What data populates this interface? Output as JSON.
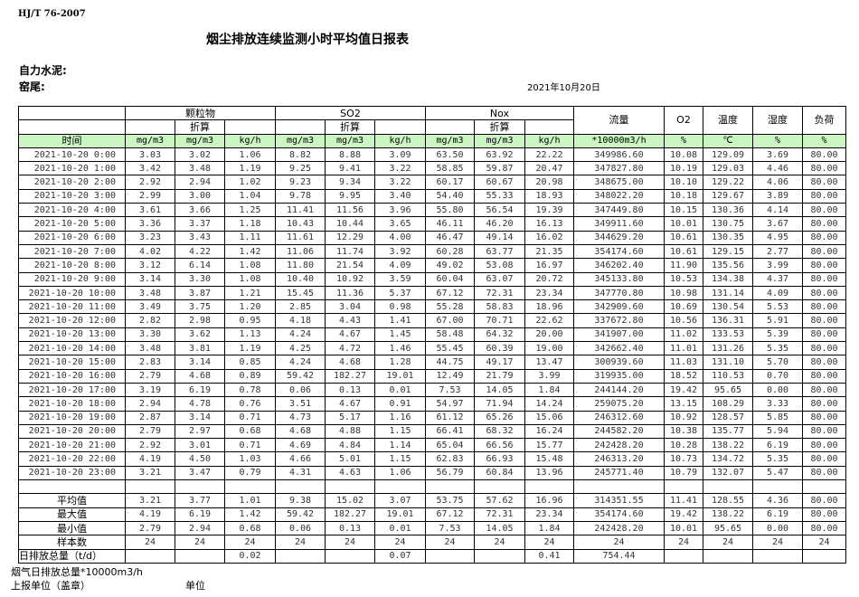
{
  "header": {
    "standard": "HJ/T  76-2007",
    "title": "烟尘排放连续监测小时平均值日报表",
    "company": "自力水泥:",
    "kiln": "窑尾:",
    "date": "2021年10月20日"
  },
  "table": {
    "group_headers": {
      "time": "",
      "particulate": "颗粒物",
      "so2": "SO2",
      "nox": "Nox",
      "flow": "流量",
      "o2": "O2",
      "temp": "温度",
      "humidity": "湿度",
      "load": "负荷"
    },
    "converted_label": "折算",
    "units": [
      "时间",
      "mg/m3",
      "mg/m3",
      "kg/h",
      "mg/m3",
      "mg/m3",
      "kg/h",
      "mg/m3",
      "mg/m3",
      "kg/h",
      "*10000m3/h",
      "%",
      "℃",
      "%",
      "%"
    ],
    "rows": [
      [
        "2021-10-20 0:00",
        "3.03",
        "3.02",
        "1.06",
        "8.82",
        "8.88",
        "3.09",
        "63.50",
        "63.92",
        "22.22",
        "349986.60",
        "10.08",
        "129.09",
        "3.69",
        "80.00"
      ],
      [
        "2021-10-20 1:00",
        "3.42",
        "3.48",
        "1.19",
        "9.25",
        "9.41",
        "3.22",
        "58.85",
        "59.87",
        "20.47",
        "347827.80",
        "10.19",
        "129.03",
        "4.46",
        "80.00"
      ],
      [
        "2021-10-20 2:00",
        "2.92",
        "2.94",
        "1.02",
        "9.23",
        "9.34",
        "3.22",
        "60.17",
        "60.67",
        "20.98",
        "348675.00",
        "10.10",
        "129.22",
        "4.06",
        "80.00"
      ],
      [
        "2021-10-20 3:00",
        "2.99",
        "3.00",
        "1.04",
        "9.78",
        "9.95",
        "3.40",
        "54.40",
        "55.33",
        "18.93",
        "348022.20",
        "10.18",
        "129.67",
        "3.89",
        "80.00"
      ],
      [
        "2021-10-20 4:00",
        "3.61",
        "3.66",
        "1.25",
        "11.41",
        "11.56",
        "3.96",
        "55.80",
        "56.54",
        "19.39",
        "347449.80",
        "10.15",
        "130.36",
        "4.14",
        "80.00"
      ],
      [
        "2021-10-20 5:00",
        "3.36",
        "3.37",
        "1.18",
        "10.43",
        "10.44",
        "3.65",
        "46.11",
        "46.20",
        "16.13",
        "349911.60",
        "10.01",
        "130.75",
        "3.67",
        "80.00"
      ],
      [
        "2021-10-20 6:00",
        "3.23",
        "3.43",
        "1.11",
        "11.61",
        "12.29",
        "4.00",
        "46.47",
        "49.14",
        "16.02",
        "344629.20",
        "10.61",
        "130.35",
        "4.95",
        "80.00"
      ],
      [
        "2021-10-20 7:00",
        "4.02",
        "4.22",
        "1.42",
        "11.06",
        "11.74",
        "3.92",
        "60.28",
        "63.77",
        "21.35",
        "354174.60",
        "10.61",
        "129.15",
        "2.77",
        "80.00"
      ],
      [
        "2021-10-20 8:00",
        "3.12",
        "6.14",
        "1.08",
        "11.80",
        "21.54",
        "4.09",
        "49.02",
        "53.08",
        "16.97",
        "346202.40",
        "11.90",
        "135.56",
        "3.99",
        "80.00"
      ],
      [
        "2021-10-20 9:00",
        "3.14",
        "3.30",
        "1.08",
        "10.40",
        "10.92",
        "3.59",
        "60.04",
        "63.07",
        "20.72",
        "345133.80",
        "10.53",
        "134.38",
        "4.37",
        "80.00"
      ],
      [
        "2021-10-20 10:00",
        "3.48",
        "3.87",
        "1.21",
        "15.45",
        "11.36",
        "5.37",
        "67.12",
        "72.31",
        "23.34",
        "347770.80",
        "10.98",
        "131.14",
        "4.09",
        "80.00"
      ],
      [
        "2021-10-20 11:00",
        "3.49",
        "3.75",
        "1.20",
        "2.85",
        "3.04",
        "0.98",
        "55.28",
        "58.83",
        "18.96",
        "342909.60",
        "10.69",
        "130.54",
        "5.53",
        "80.00"
      ],
      [
        "2021-10-20 12:00",
        "2.82",
        "2.98",
        "0.95",
        "4.18",
        "4.43",
        "1.41",
        "67.00",
        "70.71",
        "22.62",
        "337672.80",
        "10.56",
        "136.31",
        "5.91",
        "80.00"
      ],
      [
        "2021-10-20 13:00",
        "3.30",
        "3.62",
        "1.13",
        "4.24",
        "4.67",
        "1.45",
        "58.48",
        "64.32",
        "20.00",
        "341907.00",
        "11.02",
        "133.53",
        "5.39",
        "80.00"
      ],
      [
        "2021-10-20 14:00",
        "3.48",
        "3.81",
        "1.19",
        "4.25",
        "4.72",
        "1.46",
        "55.45",
        "60.39",
        "19.00",
        "342662.40",
        "11.01",
        "131.26",
        "5.35",
        "80.00"
      ],
      [
        "2021-10-20 15:00",
        "2.83",
        "3.14",
        "0.85",
        "4.24",
        "4.68",
        "1.28",
        "44.75",
        "49.17",
        "13.47",
        "300939.60",
        "11.03",
        "131.10",
        "5.70",
        "80.00"
      ],
      [
        "2021-10-20 16:00",
        "2.79",
        "4.68",
        "0.89",
        "59.42",
        "182.27",
        "19.01",
        "12.49",
        "21.79",
        "3.99",
        "319935.00",
        "18.52",
        "110.53",
        "0.70",
        "80.00"
      ],
      [
        "2021-10-20 17:00",
        "3.19",
        "6.19",
        "0.78",
        "0.06",
        "0.13",
        "0.01",
        "7.53",
        "14.05",
        "1.84",
        "244144.20",
        "19.42",
        "95.65",
        "0.00",
        "80.00"
      ],
      [
        "2021-10-20 18:00",
        "2.94",
        "4.78",
        "0.76",
        "3.51",
        "4.67",
        "0.91",
        "54.97",
        "71.94",
        "14.24",
        "259075.20",
        "13.15",
        "108.29",
        "3.33",
        "80.00"
      ],
      [
        "2021-10-20 19:00",
        "2.87",
        "3.14",
        "0.71",
        "4.73",
        "5.17",
        "1.16",
        "61.12",
        "65.26",
        "15.06",
        "246312.60",
        "10.92",
        "128.57",
        "5.85",
        "80.00"
      ],
      [
        "2021-10-20 20:00",
        "2.79",
        "2.97",
        "0.68",
        "4.68",
        "4.88",
        "1.15",
        "66.41",
        "68.32",
        "16.24",
        "244582.20",
        "10.38",
        "135.77",
        "5.94",
        "80.00"
      ],
      [
        "2021-10-20 21:00",
        "2.92",
        "3.01",
        "0.71",
        "4.69",
        "4.84",
        "1.14",
        "65.04",
        "66.56",
        "15.77",
        "242428.20",
        "10.28",
        "138.22",
        "6.19",
        "80.00"
      ],
      [
        "2021-10-20 22:00",
        "4.19",
        "4.50",
        "1.03",
        "4.66",
        "5.01",
        "1.15",
        "62.83",
        "66.93",
        "15.48",
        "246313.20",
        "10.73",
        "134.72",
        "5.35",
        "80.00"
      ],
      [
        "2021-10-20 23:00",
        "3.21",
        "3.47",
        "0.79",
        "4.31",
        "4.63",
        "1.06",
        "56.79",
        "60.84",
        "13.96",
        "245771.40",
        "10.79",
        "132.07",
        "5.47",
        "80.00"
      ]
    ],
    "summary": [
      [
        "平均值",
        "3.21",
        "3.77",
        "1.01",
        "9.38",
        "15.02",
        "3.07",
        "53.75",
        "57.62",
        "16.96",
        "314351.55",
        "11.41",
        "128.55",
        "4.36",
        "80.00"
      ],
      [
        "最大值",
        "4.19",
        "6.19",
        "1.42",
        "59.42",
        "182.27",
        "19.01",
        "67.12",
        "72.31",
        "23.34",
        "354174.60",
        "19.42",
        "138.22",
        "6.19",
        "80.00"
      ],
      [
        "最小值",
        "2.79",
        "2.94",
        "0.68",
        "0.06",
        "0.13",
        "0.01",
        "7.53",
        "14.05",
        "1.84",
        "242428.20",
        "10.01",
        "95.65",
        "0.00",
        "80.00"
      ],
      [
        "样本数",
        "24",
        "24",
        "24",
        "24",
        "24",
        "24",
        "24",
        "24",
        "24",
        "24",
        "24",
        "24",
        "24",
        "24"
      ],
      [
        "日排放总量（t/d）",
        "",
        "",
        "0.02",
        "",
        "",
        "0.07",
        "",
        "",
        "0.41",
        "754.44",
        "",
        "",
        "",
        ""
      ]
    ]
  },
  "footer": {
    "flue_gas_total": "烟气日排放总量*10000m3/h",
    "reporting_unit": "上报单位（盖章）",
    "unit": "单位"
  }
}
